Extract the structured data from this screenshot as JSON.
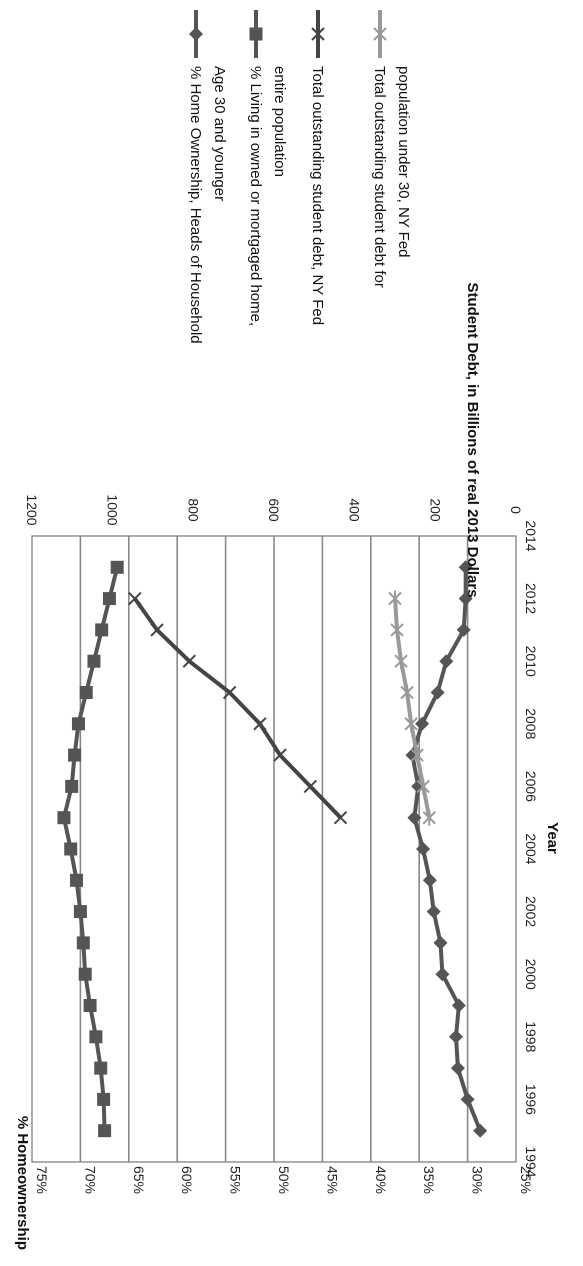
{
  "chart_data": {
    "type": "line",
    "orientation_note": "figure rotated 90 degrees clockwise",
    "xlabel": "Year",
    "ylabel_left": "% Homeownership",
    "ylabel_right": "Student Debt, in Billions of real 2013 Dollars",
    "xlim": [
      1994,
      2014
    ],
    "ylim_left": [
      25,
      75
    ],
    "ylim_right": [
      0,
      1200
    ],
    "x_ticks": [
      "1994",
      "1996",
      "1998",
      "2000",
      "2002",
      "2004",
      "2006",
      "2008",
      "2010",
      "2012",
      "2014"
    ],
    "left_ticks": [
      "25%",
      "30%",
      "35%",
      "40%",
      "45%",
      "50%",
      "55%",
      "60%",
      "65%",
      "70%",
      "75%"
    ],
    "right_ticks": [
      "0",
      "200",
      "400",
      "600",
      "800",
      "1000",
      "1200"
    ],
    "grid": "horizontal gridlines at each 5% of left axis",
    "legend_position": "right",
    "series": [
      {
        "name": "% Home Ownership, Heads of Household Age 30 and younger",
        "legend_lines": [
          "% Home Ownership, Heads of Household",
          "Age 30 and younger"
        ],
        "axis": "left",
        "marker": "diamond",
        "color": "#555555",
        "x": [
          1995,
          1996,
          1997,
          1998,
          1999,
          2000,
          2001,
          2002,
          2003,
          2004,
          2005,
          2006,
          2007,
          2008,
          2009,
          2010,
          2011,
          2012,
          2013
        ],
        "y": [
          28.7,
          30.0,
          31.0,
          31.2,
          30.9,
          32.6,
          32.8,
          33.5,
          33.9,
          34.6,
          35.5,
          35.1,
          35.7,
          34.7,
          33.1,
          32.2,
          30.4,
          30.2,
          30.2
        ]
      },
      {
        "name": "% Living in owned or mortgaged home, entire population",
        "legend_lines": [
          "% Living in owned or mortgaged home,",
          "entire population"
        ],
        "axis": "left",
        "marker": "square",
        "color": "#555555",
        "x": [
          1995,
          1996,
          1997,
          1998,
          1999,
          2000,
          2001,
          2002,
          2003,
          2004,
          2005,
          2006,
          2007,
          2008,
          2009,
          2010,
          2011,
          2012,
          2013
        ],
        "y": [
          67.5,
          67.6,
          67.9,
          68.4,
          69.0,
          69.5,
          69.7,
          70.0,
          70.4,
          71.0,
          71.7,
          70.9,
          70.6,
          70.2,
          69.4,
          68.6,
          67.8,
          67.0,
          66.2
        ]
      },
      {
        "name": "Total outstanding student debt, NY Fed",
        "legend_lines": [
          "Total outstanding student debt, NY  Fed"
        ],
        "axis": "right",
        "marker": "x",
        "color": "#444444",
        "x": [
          2005,
          2006,
          2007,
          2008,
          2009,
          2010,
          2011,
          2012
        ],
        "y": [
          435,
          510,
          585,
          635,
          710,
          810,
          890,
          945
        ]
      },
      {
        "name": "Total outstanding student debt for population under 30, NY Fed",
        "legend_lines": [
          "Total outstanding student debt for",
          "population under 30, NY Fed"
        ],
        "axis": "right",
        "marker": "asterisk",
        "color": "#999999",
        "x": [
          2005,
          2006,
          2007,
          2008,
          2009,
          2010,
          2011,
          2012
        ],
        "y": [
          215,
          230,
          245,
          260,
          270,
          285,
          295,
          300
        ]
      }
    ]
  }
}
